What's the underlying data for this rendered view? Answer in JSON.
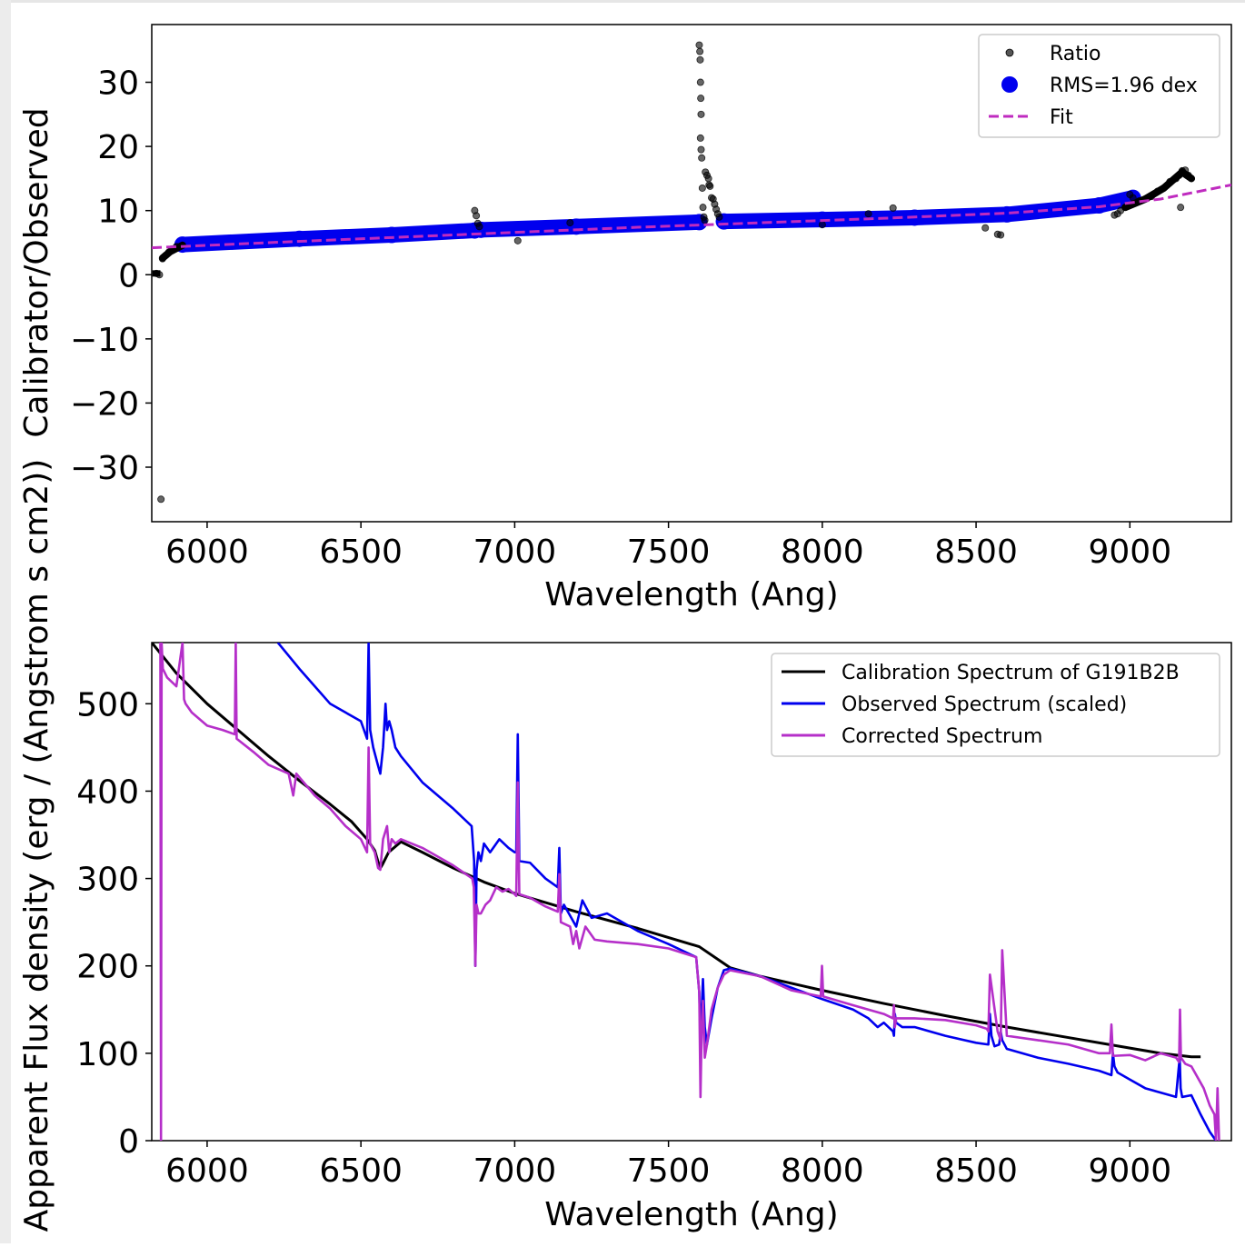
{
  "chart_data": [
    {
      "type": "scatter",
      "xlabel": "Wavelength (Ang)",
      "ylabel": "Calibrator/Observed",
      "xlim": [
        5820,
        9330
      ],
      "ylim": [
        -38.5,
        39
      ],
      "xticks": [
        6000,
        6500,
        7000,
        7500,
        8000,
        8500,
        9000
      ],
      "yticks": [
        30,
        20,
        10,
        0,
        -10,
        -20,
        -30
      ],
      "ytick_labels": [
        "30",
        "20",
        "10",
        "0",
        "−10",
        "−20",
        "−30"
      ],
      "grid": false,
      "legend_position": "top-right",
      "series": [
        {
          "name": "Ratio",
          "kind": "points",
          "color": "#555555",
          "points": [
            [
              5835,
              0.2
            ],
            [
              5845,
              0.0
            ],
            [
              5855,
              2.5
            ],
            [
              5865,
              3.0
            ],
            [
              5875,
              3.5
            ],
            [
              5885,
              4.0
            ],
            [
              5900,
              4.4
            ],
            [
              5850,
              -35.0
            ],
            [
              6870,
              10.0
            ],
            [
              6875,
              9.2
            ],
            [
              6880,
              8.0
            ],
            [
              6885,
              7.5
            ],
            [
              7010,
              5.3
            ],
            [
              7180,
              8.1
            ],
            [
              7600,
              35.8
            ],
            [
              7602,
              34.8
            ],
            [
              7603,
              33.5
            ],
            [
              7604,
              30.0
            ],
            [
              7605,
              27.5
            ],
            [
              7606,
              25.0
            ],
            [
              7604,
              21.3
            ],
            [
              7606,
              19.5
            ],
            [
              7608,
              18.2
            ],
            [
              7610,
              13.5
            ],
            [
              7620,
              16.0
            ],
            [
              7625,
              15.5
            ],
            [
              7630,
              15.0
            ],
            [
              7632,
              14.0
            ],
            [
              7635,
              13.8
            ],
            [
              7640,
              12.0
            ],
            [
              7645,
              11.8
            ],
            [
              7650,
              11.0
            ],
            [
              7655,
              10.2
            ],
            [
              7660,
              9.5
            ],
            [
              7665,
              9.0
            ],
            [
              7612,
              10.5
            ],
            [
              7615,
              9.0
            ],
            [
              7618,
              8.5
            ],
            [
              8000,
              7.8
            ],
            [
              8150,
              9.5
            ],
            [
              8230,
              10.4
            ],
            [
              8530,
              7.3
            ],
            [
              8570,
              6.3
            ],
            [
              8580,
              6.2
            ],
            [
              8950,
              9.3
            ],
            [
              8960,
              9.5
            ],
            [
              8970,
              10.0
            ],
            [
              8985,
              10.5
            ],
            [
              9000,
              12.5
            ],
            [
              9010,
              12.0
            ],
            [
              9030,
              11.5
            ],
            [
              9050,
              11.8
            ],
            [
              9070,
              12.2
            ],
            [
              9090,
              13.0
            ],
            [
              9110,
              13.5
            ],
            [
              9130,
              14.5
            ],
            [
              9150,
              15.0
            ],
            [
              9160,
              15.5
            ],
            [
              9170,
              16.2
            ],
            [
              9180,
              16.3
            ],
            [
              9190,
              15.5
            ],
            [
              9200,
              15.0
            ],
            [
              9165,
              10.5
            ]
          ]
        },
        {
          "name": "RMS=1.96 dex",
          "kind": "band",
          "color": "#0000ee",
          "segments": [
            {
              "x": [
                5920,
                6300,
                6600,
                6870
              ],
              "y": [
                4.7,
                5.6,
                6.2,
                6.9
              ]
            },
            {
              "x": [
                6890,
                7200,
                7600
              ],
              "y": [
                7.0,
                7.5,
                8.2
              ]
            },
            {
              "x": [
                7680,
                8000,
                8300,
                8600,
                8900,
                9010
              ],
              "y": [
                8.3,
                8.6,
                8.9,
                9.4,
                10.8,
                12.0
              ]
            }
          ]
        },
        {
          "name": "Fit",
          "kind": "dashed-line",
          "color": "#bf2bbf",
          "x": [
            5820,
            6200,
            6600,
            7000,
            7400,
            7800,
            8200,
            8600,
            8900,
            9100,
            9330
          ],
          "y": [
            4.2,
            5.0,
            5.8,
            6.6,
            7.4,
            8.1,
            8.8,
            9.6,
            10.6,
            11.8,
            14.0
          ]
        }
      ]
    },
    {
      "type": "line",
      "xlabel": "Wavelength (Ang)",
      "ylabel": "Apparent Flux density (erg / (Angstrom s cm2))",
      "xlim": [
        5820,
        9330
      ],
      "ylim": [
        0,
        570
      ],
      "xticks": [
        6000,
        6500,
        7000,
        7500,
        8000,
        8500,
        9000
      ],
      "yticks": [
        0,
        100,
        200,
        300,
        400,
        500
      ],
      "grid": false,
      "legend_position": "top-right",
      "series": [
        {
          "name": "Calibration Spectrum of G191B2B",
          "color": "#000000",
          "x": [
            5820,
            5900,
            6000,
            6100,
            6200,
            6300,
            6400,
            6470,
            6520,
            6545,
            6555,
            6563,
            6570,
            6590,
            6630,
            6700,
            6800,
            6900,
            7000,
            7200,
            7400,
            7600,
            7700,
            7800,
            8000,
            8200,
            8400,
            8600,
            8800,
            9000,
            9100,
            9200,
            9230
          ],
          "y": [
            570,
            535,
            500,
            470,
            440,
            412,
            385,
            365,
            345,
            332,
            320,
            312,
            316,
            330,
            342,
            330,
            312,
            296,
            283,
            262,
            243,
            222,
            198,
            188,
            172,
            157,
            143,
            130,
            118,
            106,
            100,
            96,
            96
          ]
        },
        {
          "name": "Observed Spectrum (scaled)",
          "color": "#0000ee",
          "x": [
            6230,
            6300,
            6400,
            6500,
            6520,
            6525,
            6530,
            6540,
            6555,
            6563,
            6572,
            6580,
            6585,
            6592,
            6600,
            6612,
            6630,
            6700,
            6800,
            6860,
            6868,
            6872,
            6876,
            6882,
            6890,
            6900,
            6920,
            6950,
            6980,
            7000,
            7005,
            7010,
            7015,
            7050,
            7100,
            7140,
            7145,
            7150,
            7160,
            7200,
            7220,
            7250,
            7300,
            7400,
            7500,
            7590,
            7600,
            7605,
            7608,
            7612,
            7618,
            7625,
            7640,
            7660,
            7680,
            7700,
            7800,
            7900,
            8000,
            8100,
            8150,
            8180,
            8200,
            8230,
            8233,
            8236,
            8240,
            8260,
            8300,
            8400,
            8500,
            8540,
            8545,
            8550,
            8560,
            8575,
            8580,
            8585,
            8600,
            8700,
            8800,
            8900,
            8940,
            8945,
            8950,
            8960,
            9000,
            9050,
            9100,
            9150,
            9162,
            9165,
            9170,
            9200,
            9230,
            9260,
            9280
          ],
          "y": [
            570,
            540,
            500,
            480,
            460,
            570,
            470,
            450,
            430,
            420,
            450,
            500,
            470,
            480,
            470,
            450,
            440,
            410,
            380,
            360,
            320,
            200,
            310,
            330,
            320,
            340,
            330,
            345,
            335,
            330,
            330,
            465,
            320,
            318,
            300,
            290,
            335,
            260,
            270,
            245,
            275,
            255,
            260,
            240,
            225,
            210,
            170,
            100,
            150,
            185,
            130,
            110,
            140,
            175,
            195,
            197,
            188,
            175,
            162,
            150,
            140,
            130,
            135,
            125,
            120,
            145,
            135,
            130,
            130,
            120,
            112,
            110,
            145,
            120,
            108,
            110,
            125,
            115,
            105,
            95,
            88,
            80,
            75,
            100,
            85,
            78,
            70,
            60,
            55,
            50,
            95,
            60,
            50,
            52,
            30,
            10,
            0
          ]
        },
        {
          "name": "Corrected Spectrum",
          "color": "#b52fc9",
          "x": [
            5848,
            5850,
            5852,
            5856,
            5870,
            5900,
            5920,
            5925,
            5930,
            5950,
            6000,
            6050,
            6090,
            6093,
            6096,
            6150,
            6200,
            6265,
            6280,
            6290,
            6350,
            6400,
            6450,
            6500,
            6520,
            6525,
            6530,
            6545,
            6556,
            6563,
            6572,
            6585,
            6592,
            6600,
            6612,
            6630,
            6700,
            6800,
            6862,
            6867,
            6872,
            6876,
            6882,
            6890,
            6905,
            6920,
            6940,
            6960,
            6980,
            7000,
            7005,
            7010,
            7015,
            7050,
            7100,
            7140,
            7145,
            7150,
            7180,
            7190,
            7200,
            7210,
            7230,
            7260,
            7300,
            7400,
            7500,
            7590,
            7600,
            7604,
            7608,
            7612,
            7618,
            7625,
            7640,
            7660,
            7680,
            7700,
            7800,
            7900,
            7995,
            7999,
            8003,
            8100,
            8200,
            8230,
            8233,
            8236,
            8240,
            8260,
            8300,
            8400,
            8500,
            8535,
            8540,
            8545,
            8570,
            8575,
            8580,
            8585,
            8600,
            8700,
            8800,
            8900,
            8935,
            8940,
            8945,
            9000,
            9050,
            9100,
            9150,
            9160,
            9163,
            9166,
            9180,
            9200,
            9240,
            9260,
            9275,
            9280,
            9285,
            9290
          ],
          "y": [
            570,
            0,
            570,
            540,
            530,
            520,
            570,
            505,
            500,
            490,
            475,
            470,
            465,
            570,
            460,
            445,
            430,
            420,
            395,
            420,
            395,
            380,
            360,
            345,
            330,
            450,
            340,
            330,
            312,
            310,
            345,
            360,
            330,
            345,
            340,
            345,
            335,
            315,
            300,
            290,
            200,
            270,
            260,
            260,
            270,
            275,
            290,
            285,
            288,
            282,
            280,
            410,
            282,
            278,
            268,
            262,
            305,
            250,
            245,
            225,
            240,
            220,
            245,
            230,
            228,
            225,
            220,
            210,
            170,
            50,
            130,
            160,
            95,
            110,
            150,
            175,
            190,
            195,
            188,
            172,
            165,
            200,
            165,
            155,
            145,
            140,
            155,
            130,
            140,
            140,
            140,
            138,
            132,
            128,
            125,
            190,
            125,
            120,
            115,
            218,
            120,
            115,
            110,
            100,
            100,
            133,
            97,
            98,
            92,
            100,
            95,
            90,
            150,
            95,
            88,
            85,
            60,
            40,
            30,
            0,
            60,
            0
          ]
        }
      ]
    }
  ]
}
